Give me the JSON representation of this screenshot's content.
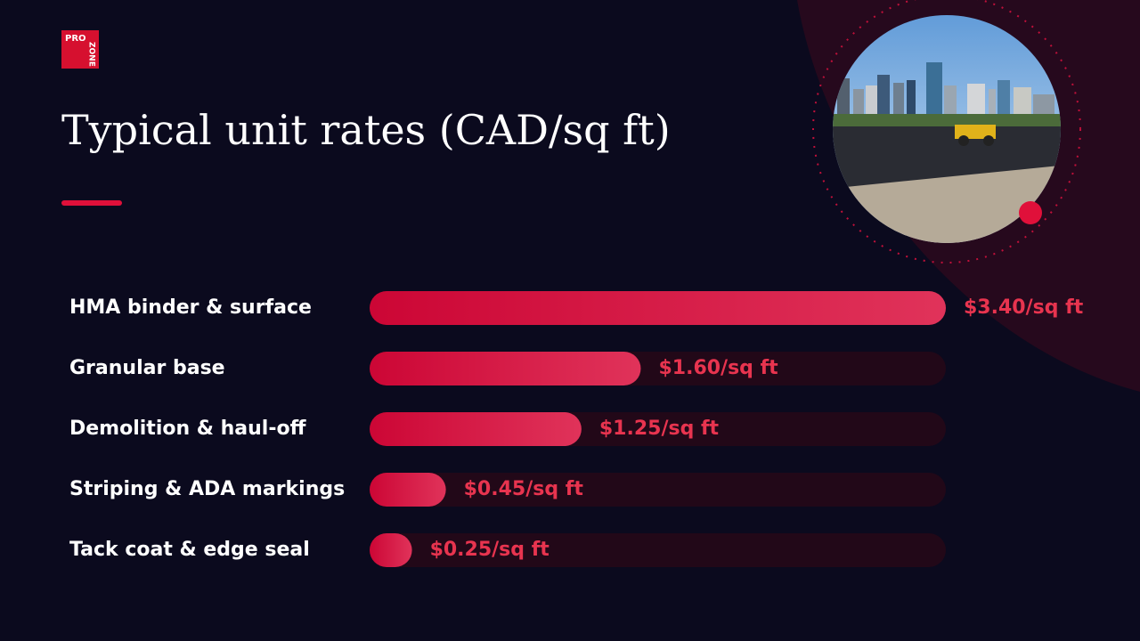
{
  "logo": {
    "top": "PRO",
    "side": "ZONE"
  },
  "chart_data": {
    "type": "bar",
    "orientation": "horizontal",
    "title": "Typical unit rates (CAD/sq ft)",
    "categories": [
      "HMA binder & surface",
      "Granular base",
      "Demolition & haul-off",
      "Striping & ADA markings",
      "Tack coat & edge seal"
    ],
    "values": [
      3.4,
      1.6,
      1.25,
      0.45,
      0.25
    ],
    "value_labels": [
      "$3.40/sq ft",
      "$1.60/sq ft",
      "$1.25/sq ft",
      "$0.45/sq ft",
      "$0.25/sq ft"
    ],
    "xlim": [
      0,
      3.4
    ],
    "color": "#e0103a",
    "track_color": "#220818"
  }
}
